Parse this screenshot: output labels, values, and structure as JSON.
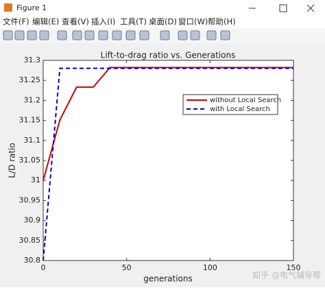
{
  "window": {
    "title": "Figure 1",
    "menu": [
      "文件(F)",
      "编辑(E)",
      "查看(V)",
      "插入(I)",
      "工具(T)",
      "桌面(D)",
      "窗口(W)",
      "帮助(H)"
    ],
    "watermark": "知乎 @电气辅导帮"
  },
  "chart_data": {
    "type": "line",
    "title": "Lift-to-drag ratio vs. Generations",
    "x_label": "generations",
    "y_label": "L/D ratio",
    "xlim": [
      0,
      150
    ],
    "xticks": [
      0,
      50,
      100,
      150
    ],
    "ylim": [
      30.8,
      31.3
    ],
    "yticks": [
      30.8,
      30.85,
      30.9,
      30.95,
      31,
      31.05,
      31.1,
      31.15,
      31.2,
      31.25,
      31.3
    ],
    "legend": "upper right",
    "series": [
      {
        "name": "without Local Search",
        "color": "#cc0000",
        "linestyle": "solid",
        "x": [
          0,
          10,
          20,
          30,
          40,
          150
        ],
        "values": [
          31.0,
          31.151,
          31.233,
          31.233,
          31.282,
          31.282
        ]
      },
      {
        "name": "with Local Search",
        "color": "#0000cc",
        "linestyle": "dashed",
        "x": [
          0,
          10,
          150
        ],
        "values": [
          30.8,
          31.28,
          31.28
        ]
      }
    ]
  }
}
